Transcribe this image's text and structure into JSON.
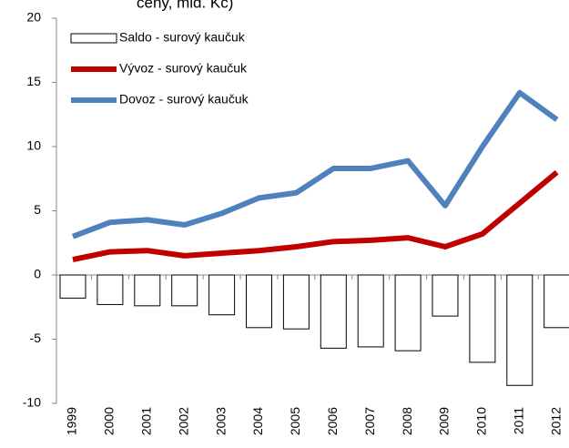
{
  "chart_data": {
    "type": "combo",
    "title": "ceny, mld. Kč)",
    "categories": [
      "1999",
      "2000",
      "2001",
      "2002",
      "2003",
      "2004",
      "2005",
      "2006",
      "2007",
      "2008",
      "2009",
      "2010",
      "2011",
      "2012"
    ],
    "series": [
      {
        "name": "Saldo - surový kaučuk",
        "type": "bar",
        "color": "#ffffff",
        "values": [
          -1.8,
          -2.3,
          -2.4,
          -2.4,
          -3.1,
          -4.1,
          -4.2,
          -5.7,
          -5.6,
          -5.9,
          -3.2,
          -6.8,
          -8.6,
          -4.1
        ]
      },
      {
        "name": "Vývoz - surový kaučuk",
        "type": "line",
        "color": "#c00000",
        "values": [
          1.2,
          1.8,
          1.9,
          1.5,
          1.7,
          1.9,
          2.2,
          2.6,
          2.7,
          2.9,
          2.2,
          3.2,
          5.6,
          8.0
        ]
      },
      {
        "name": "Dovoz - surový kaučuk",
        "type": "line",
        "color": "#4f81bd",
        "values": [
          3.0,
          4.1,
          4.3,
          3.9,
          4.8,
          6.0,
          6.4,
          8.3,
          8.3,
          8.9,
          5.4,
          10.0,
          14.2,
          12.1
        ]
      }
    ],
    "ylim": [
      -10,
      20
    ],
    "yticks": [
      -10,
      -5,
      0,
      5,
      10,
      15,
      20
    ],
    "legend": "upper left"
  }
}
